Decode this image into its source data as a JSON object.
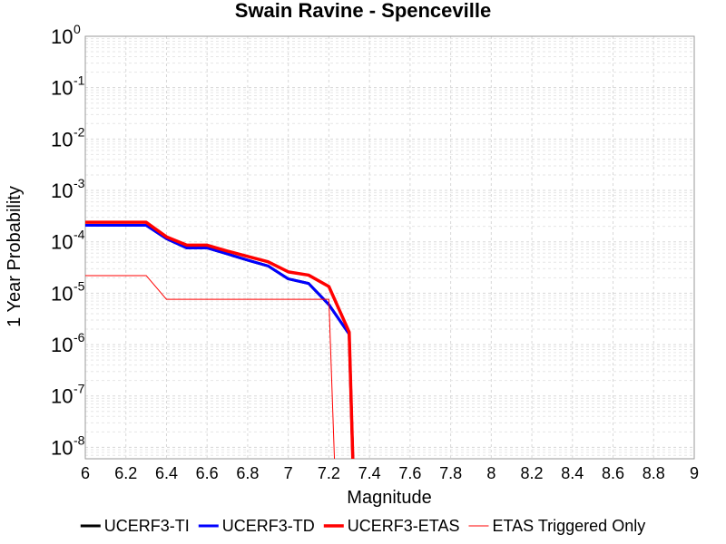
{
  "chart_data": {
    "type": "line",
    "title": "Swain Ravine - Spenceville",
    "xlabel": "Magnitude",
    "ylabel": "1 Year Probability",
    "xlim": [
      6,
      9
    ],
    "ylim": [
      6e-09,
      1
    ],
    "yscale": "log",
    "grid": true,
    "legend_position": "bottom",
    "xticks": [
      "6",
      "6.2",
      "6.4",
      "6.6",
      "6.8",
      "7",
      "7.2",
      "7.4",
      "7.6",
      "7.8",
      "8",
      "8.2",
      "8.4",
      "8.6",
      "8.8",
      "9"
    ],
    "yticks": [
      {
        "base": "10",
        "exp": "0"
      },
      {
        "base": "10",
        "exp": "-1"
      },
      {
        "base": "10",
        "exp": "-2"
      },
      {
        "base": "10",
        "exp": "-3"
      },
      {
        "base": "10",
        "exp": "-4"
      },
      {
        "base": "10",
        "exp": "-5"
      },
      {
        "base": "10",
        "exp": "-6"
      },
      {
        "base": "10",
        "exp": "-7"
      },
      {
        "base": "10",
        "exp": "-8"
      }
    ],
    "series": [
      {
        "name": "UCERF3-TI",
        "color": "#000000",
        "linewidth": 3,
        "x": [
          6.0,
          6.1,
          6.2,
          6.3,
          6.4,
          6.5,
          6.6,
          6.7,
          6.8,
          6.9,
          7.0,
          7.1,
          7.2,
          7.3,
          7.32
        ],
        "y": [
          0.00021,
          0.00021,
          0.00021,
          0.00021,
          0.000115,
          7.6e-05,
          7.6e-05,
          5.8e-05,
          4.4e-05,
          3.4e-05,
          1.9e-05,
          1.55e-05,
          6e-06,
          1.6e-06,
          3e-09
        ]
      },
      {
        "name": "UCERF3-TD",
        "color": "#0000ff",
        "linewidth": 3,
        "x": [
          6.0,
          6.1,
          6.2,
          6.3,
          6.4,
          6.5,
          6.6,
          6.7,
          6.8,
          6.9,
          7.0,
          7.1,
          7.2,
          7.3,
          7.32
        ],
        "y": [
          0.00021,
          0.00021,
          0.00021,
          0.00021,
          0.000115,
          7.6e-05,
          7.6e-05,
          5.8e-05,
          4.4e-05,
          3.4e-05,
          1.9e-05,
          1.55e-05,
          6e-06,
          1.6e-06,
          3e-09
        ]
      },
      {
        "name": "UCERF3-ETAS",
        "color": "#ff0000",
        "linewidth": 3.5,
        "x": [
          6.0,
          6.1,
          6.2,
          6.3,
          6.4,
          6.5,
          6.6,
          6.7,
          6.8,
          6.9,
          7.0,
          7.1,
          7.2,
          7.3,
          7.32
        ],
        "y": [
          0.00024,
          0.00024,
          0.00024,
          0.00024,
          0.000125,
          8.6e-05,
          8.6e-05,
          6.6e-05,
          5.2e-05,
          4.1e-05,
          2.6e-05,
          2.25e-05,
          1.35e-05,
          1.75e-06,
          3e-09
        ]
      },
      {
        "name": "ETAS Triggered Only",
        "color": "#ff0000",
        "linewidth": 1,
        "x": [
          6.0,
          6.1,
          6.2,
          6.3,
          6.4,
          6.5,
          6.6,
          6.7,
          6.8,
          6.9,
          7.0,
          7.1,
          7.2,
          7.23
        ],
        "y": [
          2.2e-05,
          2.2e-05,
          2.2e-05,
          2.2e-05,
          7.6e-06,
          7.6e-06,
          7.6e-06,
          7.6e-06,
          7.6e-06,
          7.6e-06,
          7.6e-06,
          7.6e-06,
          7.6e-06,
          3e-09
        ]
      }
    ]
  }
}
